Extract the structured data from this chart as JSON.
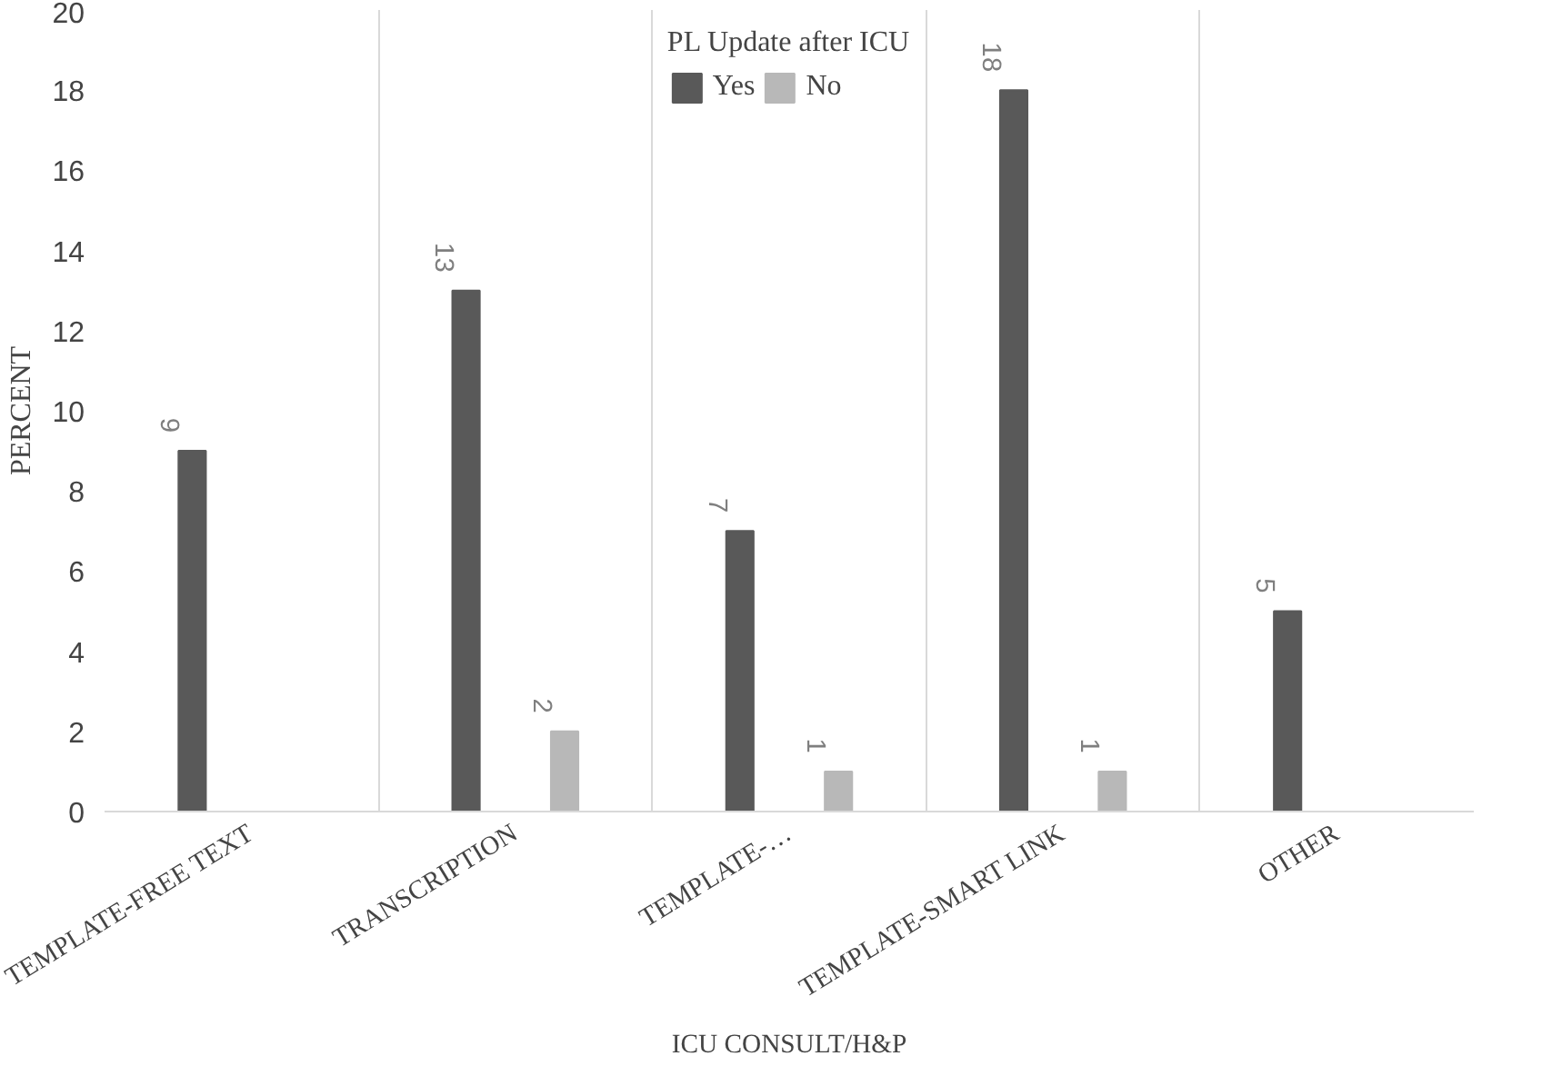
{
  "chart_data": {
    "type": "bar",
    "xlabel": "ICU CONSULT/H&P",
    "ylabel": "PERCENT",
    "legend_title": "PL Update after ICU",
    "legend": "top",
    "categories": [
      "TEMPLATE-FREE TEXT",
      "TRANSCRIPTION",
      "TEMPLATE-…",
      "TEMPLATE-SMART LINK",
      "OTHER"
    ],
    "series": [
      {
        "name": "Yes",
        "color": "#595959",
        "values": [
          9,
          13,
          7,
          18,
          5
        ]
      },
      {
        "name": "No",
        "color": "#b8b8b8",
        "values": [
          null,
          2,
          1,
          1,
          null
        ]
      }
    ],
    "ylim": [
      0,
      20
    ],
    "yticks": [
      0,
      2,
      4,
      6,
      8,
      10,
      12,
      14,
      16,
      18,
      20
    ],
    "grid": "x",
    "data_labels": true
  }
}
